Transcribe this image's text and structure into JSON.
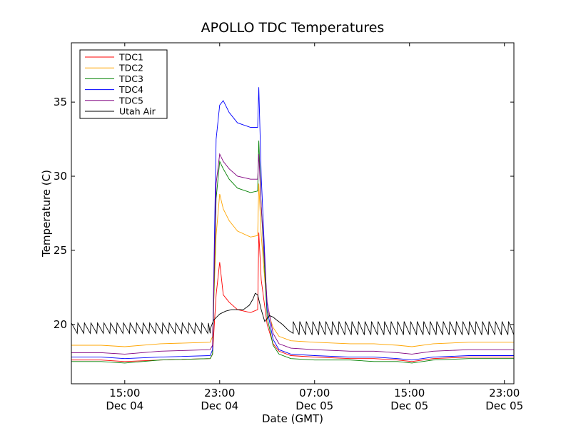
{
  "chart_data": {
    "type": "line",
    "title": "APOLLO TDC Temperatures",
    "xlabel": "Date (GMT)",
    "ylabel": "Temperature (C)",
    "x_unit": "hours since Dec 04 00:00 GMT",
    "xlim": [
      10.5,
      47.8
    ],
    "ylim": [
      16,
      39
    ],
    "x_ticks": [
      {
        "value": 15,
        "label_time": "15:00",
        "label_date": "Dec 04"
      },
      {
        "value": 23,
        "label_time": "23:00",
        "label_date": "Dec 04"
      },
      {
        "value": 31,
        "label_time": "07:00",
        "label_date": "Dec 05"
      },
      {
        "value": 39,
        "label_time": "15:00",
        "label_date": "Dec 05"
      },
      {
        "value": 47,
        "label_time": "23:00",
        "label_date": "Dec 05"
      }
    ],
    "y_ticks": [
      {
        "value": 20,
        "label": "20"
      },
      {
        "value": 25,
        "label": "25"
      },
      {
        "value": 30,
        "label": "30"
      },
      {
        "value": 35,
        "label": "35"
      }
    ],
    "grid": false,
    "legend_position": "top-left",
    "series": [
      {
        "name": "TDC1",
        "color": "#ff0000",
        "x": [
          10.5,
          13,
          15,
          18,
          22.2,
          22.4,
          22.7,
          23.0,
          23.3,
          23.8,
          24.5,
          25.6,
          26.2,
          26.3,
          26.5,
          27,
          27.5,
          28,
          29,
          31,
          34,
          36,
          38,
          39.2,
          41,
          44,
          47.8
        ],
        "y": [
          17.6,
          17.6,
          17.5,
          17.6,
          17.7,
          18.0,
          22.0,
          24.2,
          22.0,
          21.5,
          21.0,
          20.8,
          21.0,
          26.2,
          23.0,
          20.0,
          18.7,
          18.2,
          17.9,
          17.8,
          17.7,
          17.7,
          17.6,
          17.5,
          17.7,
          17.8,
          17.8
        ]
      },
      {
        "name": "TDC2",
        "color": "#ffa500",
        "x": [
          10.5,
          13,
          15,
          18,
          22.2,
          22.4,
          22.7,
          23.0,
          23.3,
          23.8,
          24.5,
          25.6,
          26.2,
          26.3,
          26.5,
          27,
          27.5,
          28,
          29,
          31,
          34,
          36,
          38,
          39.2,
          41,
          44,
          47.8
        ],
        "y": [
          18.6,
          18.6,
          18.5,
          18.7,
          18.8,
          19.2,
          26.0,
          28.8,
          27.8,
          27.0,
          26.3,
          25.9,
          26.0,
          29.5,
          26.0,
          21.0,
          19.8,
          19.2,
          18.9,
          18.8,
          18.7,
          18.7,
          18.6,
          18.5,
          18.7,
          18.8,
          18.8
        ]
      },
      {
        "name": "TDC3",
        "color": "#008000",
        "x": [
          10.5,
          13,
          15,
          18,
          22.2,
          22.4,
          22.7,
          23.0,
          23.3,
          23.8,
          24.5,
          25.6,
          26.2,
          26.3,
          26.5,
          27,
          27.5,
          28,
          29,
          31,
          34,
          36,
          38,
          39.2,
          41,
          44,
          47.8
        ],
        "y": [
          17.5,
          17.5,
          17.4,
          17.6,
          17.7,
          18.0,
          28.5,
          31.0,
          30.5,
          29.8,
          29.2,
          28.9,
          29.0,
          32.4,
          28.0,
          20.5,
          18.6,
          18.0,
          17.7,
          17.6,
          17.6,
          17.5,
          17.5,
          17.4,
          17.6,
          17.7,
          17.7
        ]
      },
      {
        "name": "TDC4",
        "color": "#0000ff",
        "x": [
          10.5,
          13,
          15,
          18,
          22.2,
          22.4,
          22.7,
          23.0,
          23.3,
          23.8,
          24.5,
          25.6,
          26.2,
          26.3,
          26.5,
          27,
          27.5,
          28,
          29,
          31,
          34,
          36,
          38,
          39.2,
          41,
          44,
          47.8
        ],
        "y": [
          17.8,
          17.8,
          17.7,
          17.8,
          17.9,
          18.3,
          32.5,
          34.8,
          35.1,
          34.3,
          33.6,
          33.3,
          33.3,
          36.0,
          30.0,
          21.0,
          19.0,
          18.3,
          18.0,
          17.9,
          17.8,
          17.8,
          17.7,
          17.6,
          17.8,
          17.9,
          17.9
        ]
      },
      {
        "name": "TDC5",
        "color": "#800080",
        "x": [
          10.5,
          13,
          15,
          18,
          22.2,
          22.4,
          22.7,
          23.0,
          23.3,
          23.8,
          24.5,
          25.6,
          26.2,
          26.3,
          26.5,
          27,
          27.5,
          28,
          29,
          31,
          34,
          36,
          38,
          39.2,
          41,
          44,
          47.8
        ],
        "y": [
          18.1,
          18.1,
          18.0,
          18.2,
          18.3,
          18.6,
          29.5,
          31.5,
          31.0,
          30.5,
          30.0,
          29.8,
          29.8,
          31.5,
          28.0,
          21.5,
          19.4,
          18.7,
          18.4,
          18.3,
          18.2,
          18.2,
          18.1,
          18.0,
          18.2,
          18.3,
          18.3
        ]
      },
      {
        "name": "Utah Air",
        "color": "#000000",
        "x": [
          10.5,
          22.2,
          22.5,
          23.0,
          23.5,
          24.0,
          24.5,
          25.0,
          25.5,
          25.8,
          26.0,
          26.2,
          26.5,
          26.8,
          27.2,
          27.5,
          27.8,
          28.3,
          28.8,
          29.2,
          47.8
        ],
        "y": [
          19.8,
          19.7,
          20.3,
          20.7,
          20.9,
          21.0,
          21.0,
          21.0,
          21.3,
          21.7,
          22.1,
          22.0,
          21.0,
          20.2,
          20.6,
          20.5,
          20.3,
          20.0,
          19.6,
          19.4,
          19.7
        ],
        "sawtooth": [
          {
            "from": 10.5,
            "to": 22.2,
            "low": 19.4,
            "high": 20.1,
            "period": 0.55
          },
          {
            "from": 29.2,
            "to": 47.8,
            "low": 19.3,
            "high": 20.2,
            "period": 0.55
          }
        ]
      }
    ]
  }
}
